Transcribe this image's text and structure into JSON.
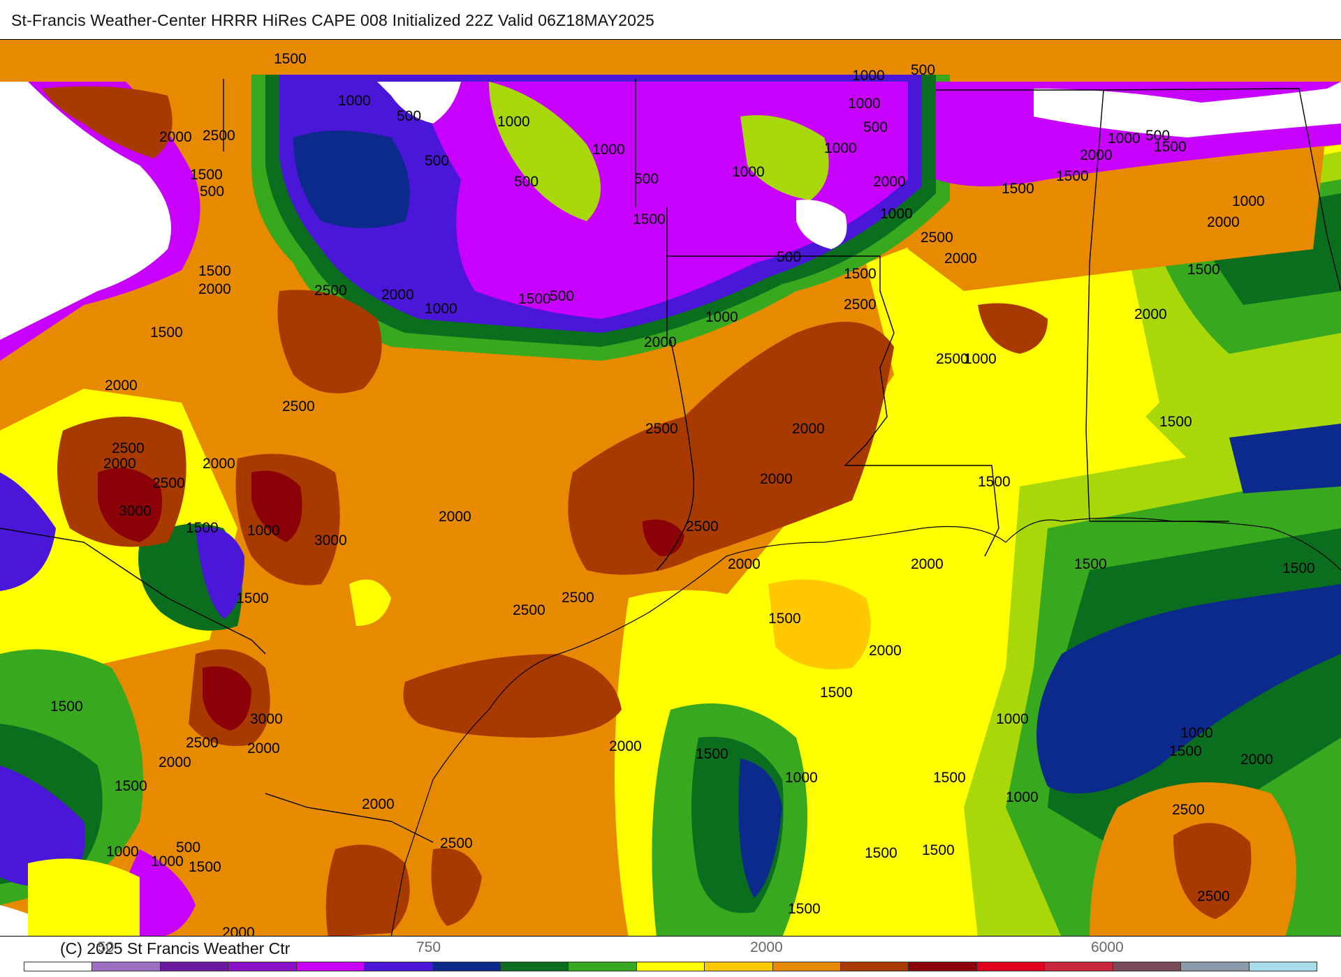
{
  "header": {
    "title": "St-Francis Weather-Center HRRR HiRes CAPE  008 Initialized  22Z Valid 06Z18MAY2025"
  },
  "footer": {
    "copyright": "(C) 2025 St Francis Weather Ctr",
    "scale_ticks": [
      {
        "label": "50"
      },
      {
        "label": "750"
      },
      {
        "label": "2000"
      },
      {
        "label": "6000"
      }
    ]
  },
  "palette": {
    "white": "#ffffff",
    "lavender": "#9e6fc0",
    "deep_purple": "#5a0f8a",
    "violet": "#7a00c8",
    "magenta": "#c800ff",
    "blue_violet": "#4a16d8",
    "navy": "#0c2a8c",
    "dark_green": "#0a6e1e",
    "green": "#38a81e",
    "yellow_green": "#a8d80a",
    "yellow": "#ffff00",
    "gold": "#ffc800",
    "orange": "#e88a00",
    "brown": "#a83a00",
    "dark_red": "#8c0008",
    "red": "#e0001e",
    "crimson": "#c8283c",
    "mauve": "#7a4a58",
    "gray": "#8a9aa8",
    "light_blue": "#a8dce8"
  },
  "colorbar": [
    "#ffffff",
    "#9e6fc0",
    "#6a1aa0",
    "#8c10c8",
    "#c800ff",
    "#4a16d8",
    "#0c2a8c",
    "#0a6e1e",
    "#38a81e",
    "#ffff00",
    "#ffc800",
    "#e88a00",
    "#a83a00",
    "#8c0008",
    "#e0001e",
    "#c8283c",
    "#7a4a58",
    "#8a9aa8",
    "#a8dce8"
  ],
  "contour_labels": [
    {
      "text": "1500"
    },
    {
      "text": "1000"
    },
    {
      "text": "500"
    },
    {
      "text": "1000"
    },
    {
      "text": "500"
    },
    {
      "text": "2000"
    },
    {
      "text": "2500"
    },
    {
      "text": "1500"
    },
    {
      "text": "500"
    },
    {
      "text": "1000"
    },
    {
      "text": "500"
    },
    {
      "text": "1000"
    },
    {
      "text": "500"
    },
    {
      "text": "1000"
    },
    {
      "text": "1000"
    },
    {
      "text": "500"
    },
    {
      "text": "1000"
    },
    {
      "text": "500"
    },
    {
      "text": "2000"
    },
    {
      "text": "1500"
    },
    {
      "text": "1500"
    },
    {
      "text": "1500"
    },
    {
      "text": "1000"
    },
    {
      "text": "1500"
    },
    {
      "text": "500"
    },
    {
      "text": "1000"
    },
    {
      "text": "2000"
    },
    {
      "text": "2500"
    },
    {
      "text": "2000"
    },
    {
      "text": "1000"
    },
    {
      "text": "1500"
    },
    {
      "text": "500"
    },
    {
      "text": "1500"
    },
    {
      "text": "2500"
    },
    {
      "text": "2000"
    },
    {
      "text": "2000"
    },
    {
      "text": "1000"
    },
    {
      "text": "2000"
    },
    {
      "text": "500"
    },
    {
      "text": "1500"
    },
    {
      "text": "1000"
    },
    {
      "text": "2000"
    },
    {
      "text": "2000"
    },
    {
      "text": "2500"
    },
    {
      "text": "1500"
    },
    {
      "text": "1000"
    },
    {
      "text": "2500"
    },
    {
      "text": "2500"
    },
    {
      "text": "2000"
    },
    {
      "text": "2500"
    },
    {
      "text": "2000"
    },
    {
      "text": "1500"
    },
    {
      "text": "3000"
    },
    {
      "text": "1500"
    },
    {
      "text": "1000"
    },
    {
      "text": "3000"
    },
    {
      "text": "2000"
    },
    {
      "text": "2500"
    },
    {
      "text": "2000"
    },
    {
      "text": "1500"
    },
    {
      "text": "2500"
    },
    {
      "text": "1500"
    },
    {
      "text": "2000"
    },
    {
      "text": "2000"
    },
    {
      "text": "1500"
    },
    {
      "text": "2500"
    },
    {
      "text": "2000"
    },
    {
      "text": "1500"
    },
    {
      "text": "2500"
    },
    {
      "text": "1500"
    },
    {
      "text": "2000"
    },
    {
      "text": "1500"
    },
    {
      "text": "2500"
    },
    {
      "text": "2000"
    },
    {
      "text": "3000"
    },
    {
      "text": "1500"
    },
    {
      "text": "1000"
    },
    {
      "text": "1000"
    },
    {
      "text": "1500"
    },
    {
      "text": "2000"
    },
    {
      "text": "2500"
    },
    {
      "text": "2000"
    },
    {
      "text": "2000"
    },
    {
      "text": "1500"
    },
    {
      "text": "2000"
    },
    {
      "text": "1500"
    },
    {
      "text": "1000"
    },
    {
      "text": "1500"
    },
    {
      "text": "2000"
    },
    {
      "text": "1500"
    },
    {
      "text": "1000"
    },
    {
      "text": "500"
    },
    {
      "text": "1500"
    },
    {
      "text": "2500"
    },
    {
      "text": "1000"
    },
    {
      "text": "1000"
    },
    {
      "text": "1500"
    },
    {
      "text": "1500"
    },
    {
      "text": "2500"
    },
    {
      "text": "2500"
    },
    {
      "text": "1500"
    },
    {
      "text": "2000"
    }
  ]
}
